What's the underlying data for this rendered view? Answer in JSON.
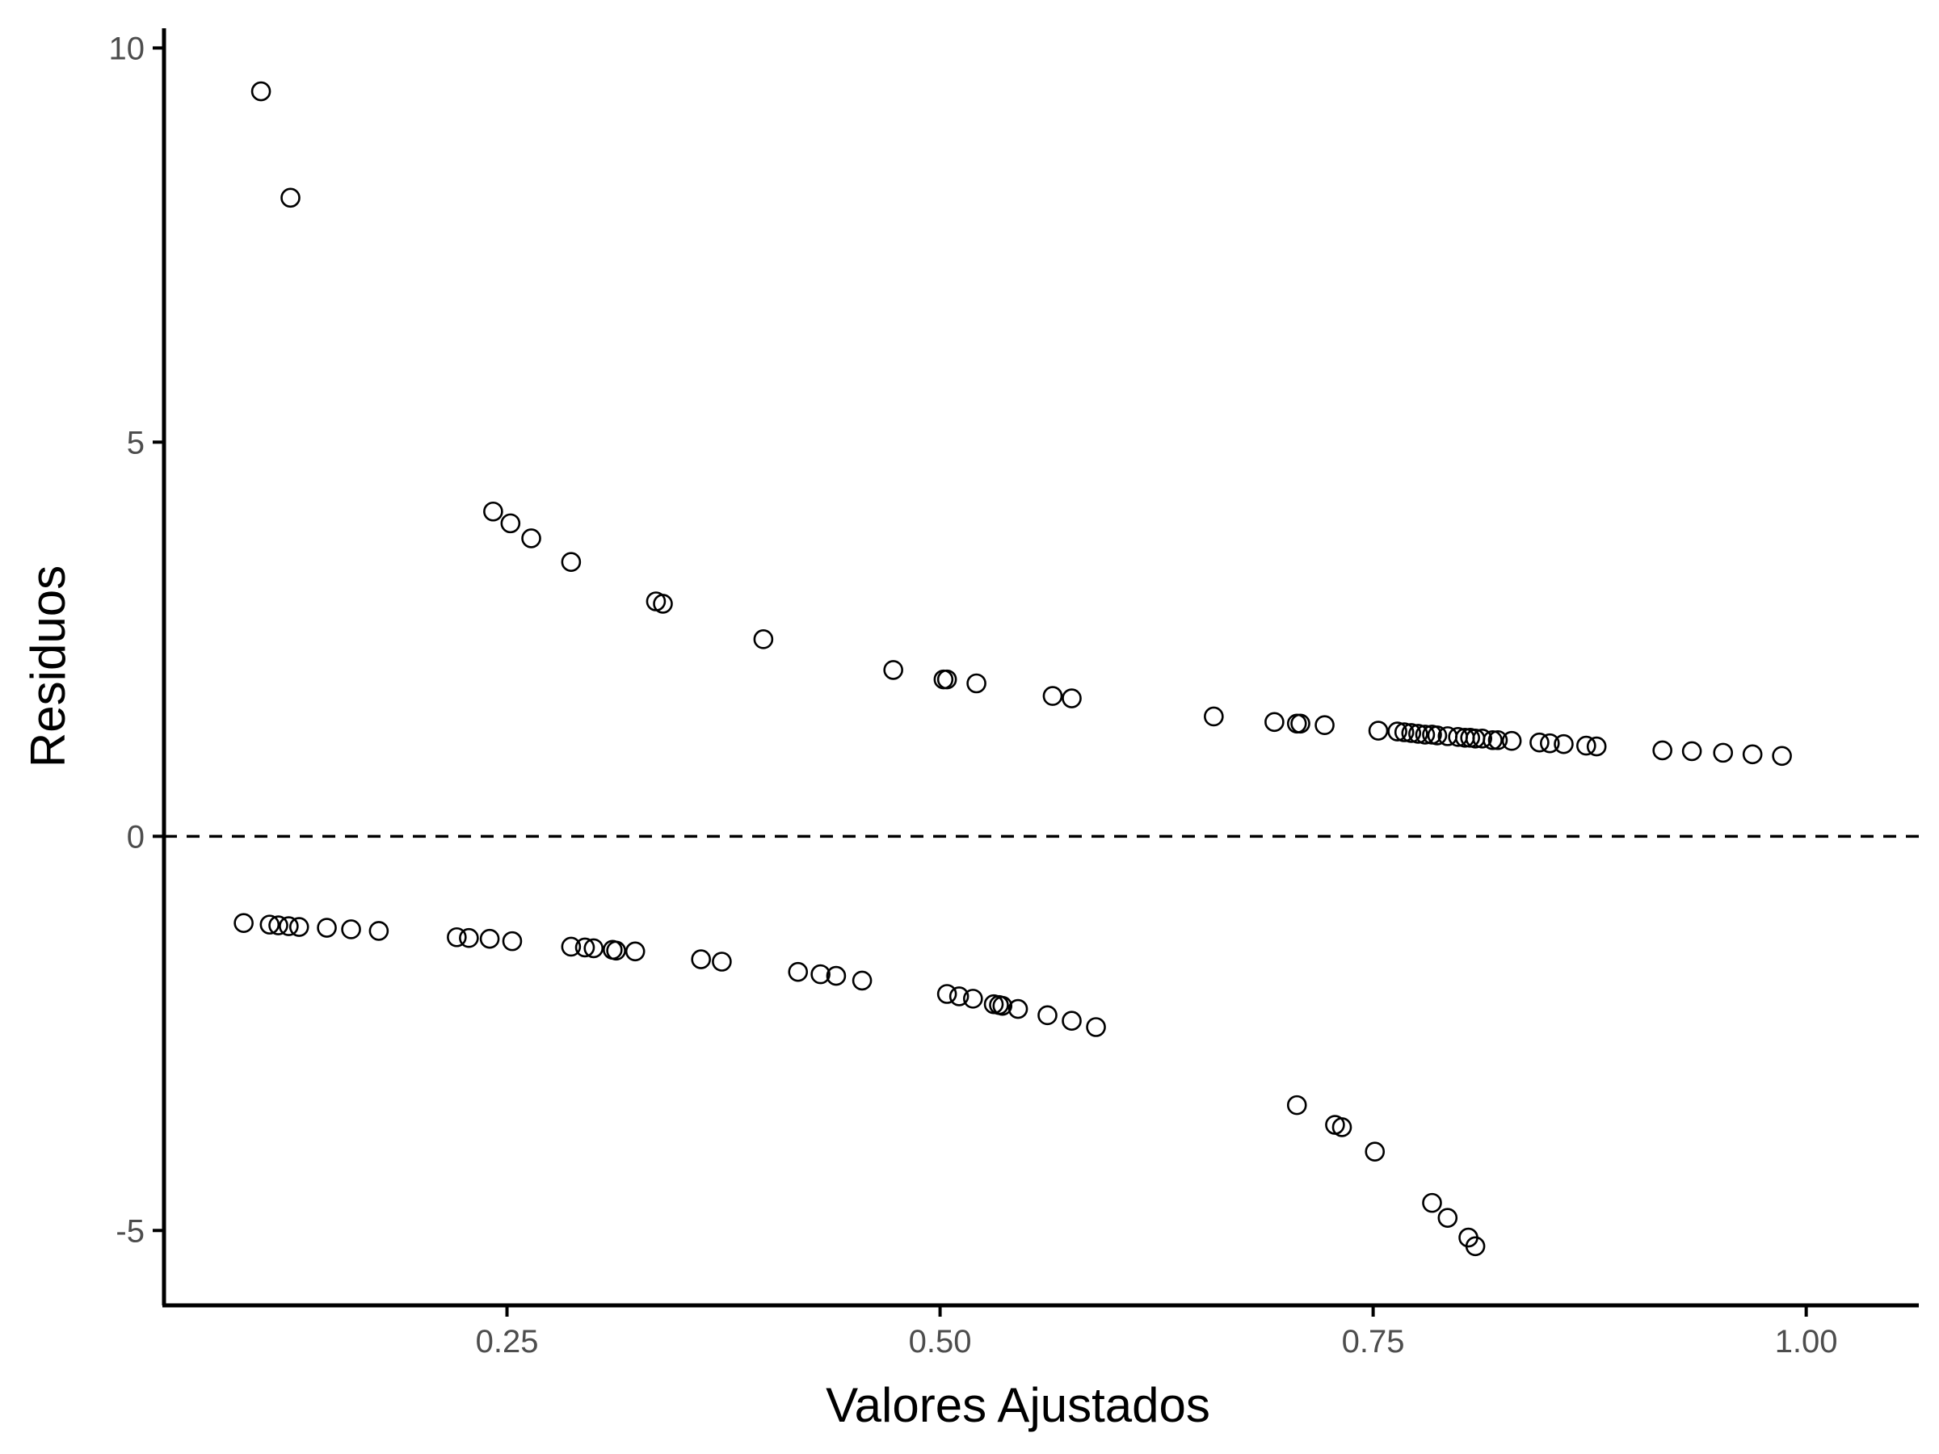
{
  "chart_data": {
    "type": "scatter",
    "xlabel": "Valores Ajustados",
    "ylabel": "Residuos",
    "xlim": [
      0.052,
      1.065
    ],
    "ylim": [
      -5.95,
      10.25
    ],
    "xticks": [
      0.25,
      0.5,
      0.75,
      1.0
    ],
    "xtick_labels": [
      "0.25",
      "0.50",
      "0.75",
      "1.00"
    ],
    "yticks": [
      -5,
      0,
      5,
      10
    ],
    "ytick_labels": [
      "-5",
      "0",
      "5",
      "10"
    ],
    "reference_line": {
      "y": 0,
      "style": "dashed"
    },
    "grid": false,
    "point_style": "open-circle",
    "series": [
      {
        "x": [
          0.108,
          0.125,
          0.242,
          0.252,
          0.264,
          0.287,
          0.336,
          0.34,
          0.398,
          0.473,
          0.502,
          0.504,
          0.521,
          0.565,
          0.576,
          0.658,
          0.693,
          0.706,
          0.708,
          0.722,
          0.753,
          0.764,
          0.768,
          0.772,
          0.776,
          0.78,
          0.784,
          0.787,
          0.793,
          0.799,
          0.803,
          0.806,
          0.809,
          0.813,
          0.819,
          0.822,
          0.83,
          0.846,
          0.852,
          0.86,
          0.873,
          0.879,
          0.917,
          0.934,
          0.952,
          0.969,
          0.986,
          0.098,
          0.113,
          0.118,
          0.124,
          0.13,
          0.146,
          0.16,
          0.176,
          0.221,
          0.228,
          0.24,
          0.253,
          0.287,
          0.295,
          0.3,
          0.311,
          0.313,
          0.324,
          0.362,
          0.374,
          0.418,
          0.431,
          0.44,
          0.455,
          0.504,
          0.511,
          0.519,
          0.531,
          0.534,
          0.536,
          0.545,
          0.562,
          0.576,
          0.59,
          0.706,
          0.728,
          0.732,
          0.751,
          0.784,
          0.793,
          0.805,
          0.809
        ],
        "y": [
          9.45,
          8.1,
          4.12,
          3.97,
          3.78,
          3.48,
          2.98,
          2.95,
          2.5,
          2.11,
          1.99,
          1.99,
          1.94,
          1.78,
          1.75,
          1.52,
          1.45,
          1.43,
          1.43,
          1.41,
          1.34,
          1.33,
          1.32,
          1.31,
          1.3,
          1.29,
          1.29,
          1.28,
          1.27,
          1.26,
          1.25,
          1.25,
          1.24,
          1.24,
          1.22,
          1.22,
          1.21,
          1.19,
          1.18,
          1.17,
          1.15,
          1.14,
          1.09,
          1.08,
          1.06,
          1.04,
          1.02,
          -1.1,
          -1.12,
          -1.13,
          -1.14,
          -1.15,
          -1.16,
          -1.18,
          -1.2,
          -1.28,
          -1.29,
          -1.3,
          -1.33,
          -1.4,
          -1.41,
          -1.42,
          -1.44,
          -1.45,
          -1.46,
          -1.56,
          -1.59,
          -1.72,
          -1.75,
          -1.77,
          -1.83,
          -2.0,
          -2.03,
          -2.06,
          -2.13,
          -2.14,
          -2.15,
          -2.19,
          -2.27,
          -2.34,
          -2.42,
          -3.41,
          -3.66,
          -3.69,
          -4.0,
          -4.65,
          -4.84,
          -5.09,
          -5.2
        ]
      }
    ]
  }
}
